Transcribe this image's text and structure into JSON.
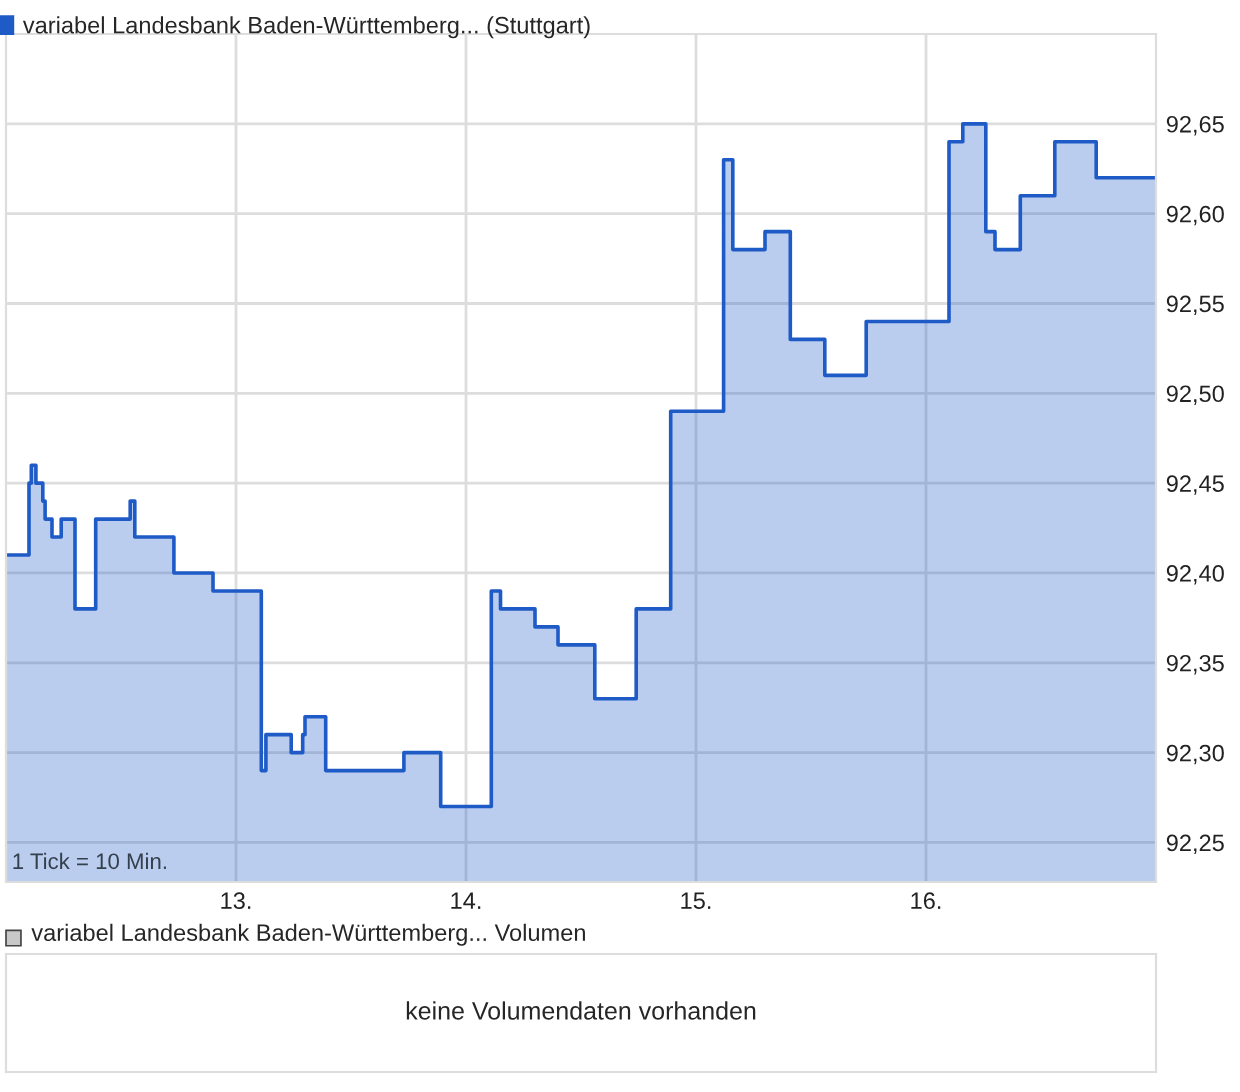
{
  "chart_data": [
    {
      "type": "area",
      "legend": "top left",
      "grid": true,
      "x": [
        12.0,
        12.1,
        12.1,
        12.11,
        12.11,
        12.13,
        12.13,
        12.16,
        12.16,
        12.17,
        12.17,
        12.2,
        12.2,
        12.24,
        12.24,
        12.3,
        12.3,
        12.39,
        12.39,
        12.54,
        12.54,
        12.56,
        12.56,
        12.73,
        12.73,
        12.9,
        12.9,
        13.11,
        13.11,
        13.13,
        13.13,
        13.24,
        13.24,
        13.29,
        13.29,
        13.3,
        13.3,
        13.39,
        13.39,
        13.73,
        13.73,
        13.89,
        13.89,
        14.11,
        14.11,
        14.15,
        14.15,
        14.3,
        14.3,
        14.4,
        14.4,
        14.56,
        14.56,
        14.74,
        14.74,
        14.89,
        14.89,
        15.12,
        15.12,
        15.16,
        15.16,
        15.3,
        15.3,
        15.41,
        15.41,
        15.56,
        15.56,
        15.74,
        15.74,
        16.1,
        16.1,
        16.16,
        16.16,
        16.26,
        16.26,
        16.3,
        16.3,
        16.41,
        16.41,
        16.56,
        16.56,
        16.74,
        16.74,
        17.0
      ],
      "series": [
        {
          "name": "variabel Landesbank Baden-Württemberg... (Stuttgart)",
          "color": "#1f5bc6",
          "values": [
            92.41,
            92.41,
            92.45,
            92.45,
            92.46,
            92.46,
            92.45,
            92.45,
            92.44,
            92.44,
            92.43,
            92.43,
            92.42,
            92.42,
            92.43,
            92.43,
            92.38,
            92.38,
            92.43,
            92.43,
            92.44,
            92.44,
            92.42,
            92.42,
            92.4,
            92.4,
            92.39,
            92.39,
            92.29,
            92.29,
            92.31,
            92.31,
            92.3,
            92.3,
            92.31,
            92.31,
            92.32,
            92.32,
            92.29,
            92.29,
            92.3,
            92.3,
            92.27,
            92.27,
            92.39,
            92.39,
            92.38,
            92.38,
            92.37,
            92.37,
            92.36,
            92.36,
            92.33,
            92.33,
            92.38,
            92.38,
            92.49,
            92.49,
            92.63,
            92.63,
            92.58,
            92.58,
            92.59,
            92.59,
            92.53,
            92.53,
            92.51,
            92.51,
            92.54,
            92.54,
            92.64,
            92.64,
            92.65,
            92.65,
            92.59,
            92.59,
            92.58,
            92.58,
            92.61,
            92.61,
            92.64,
            92.64,
            92.62,
            92.62
          ]
        }
      ],
      "xlim": [
        12.0,
        17.0
      ],
      "xticks": [
        {
          "value": 13,
          "label": "13."
        },
        {
          "value": 14,
          "label": "14."
        },
        {
          "value": 15,
          "label": "15."
        },
        {
          "value": 16,
          "label": "16."
        }
      ],
      "ylim": [
        92.228,
        92.7
      ],
      "yticks": [
        {
          "value": 92.25,
          "label": "92,25"
        },
        {
          "value": 92.3,
          "label": "92,30"
        },
        {
          "value": 92.35,
          "label": "92,35"
        },
        {
          "value": 92.4,
          "label": "92,40"
        },
        {
          "value": 92.45,
          "label": "92,45"
        },
        {
          "value": 92.5,
          "label": "92,50"
        },
        {
          "value": 92.55,
          "label": "92,55"
        },
        {
          "value": 92.6,
          "label": "92,60"
        },
        {
          "value": 92.65,
          "label": "92,65"
        }
      ],
      "annotations": [
        "1 Tick = 10 Min."
      ]
    },
    {
      "type": "other",
      "title": "variabel Landesbank Baden-Württemberg... Volumen",
      "annotations": [
        "keine Volumendaten vorhanden"
      ]
    }
  ]
}
